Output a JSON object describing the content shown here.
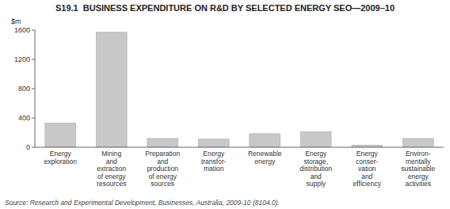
{
  "chart_data": {
    "type": "bar",
    "title": "S19.1  BUSINESS EXPENDITURE ON R&D BY SELECTED ENERGY SEO—2009–10",
    "ylabel": "$m",
    "source": "Source: Research and Experimental Development, Businesses, Australia, 2009-10 (8104.0).",
    "categories": [
      "Energy\nexploration",
      "Mining\nand\nextraction\nof energy\nresources",
      "Preparation\nand\nproduction\nof energy\nsources",
      "Energy\ntransfor-\nmation",
      "Renewable\nenergy",
      "Energy\nstorage,\ndistribution\nand\nsupply",
      "Energy\nconser-\nvation\nand\nefficiency",
      "Environ-\nmentally\nsustainable\nenergy\nactivities"
    ],
    "values": [
      330,
      1570,
      120,
      110,
      185,
      210,
      30,
      120
    ],
    "color": "#c8c8c8",
    "ylim": [
      0,
      1600
    ],
    "yticks": [
      0,
      400,
      800,
      1200,
      1600
    ],
    "grid": false
  }
}
